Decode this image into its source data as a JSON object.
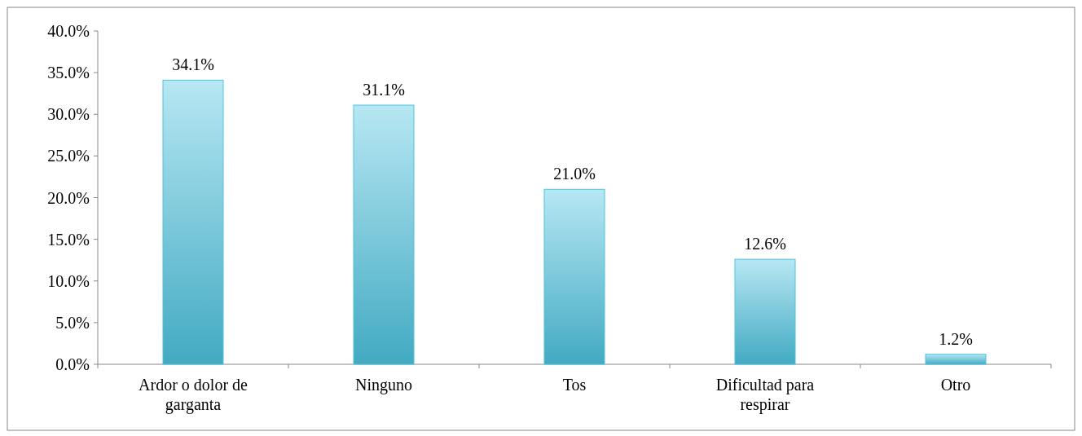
{
  "chart_data": {
    "type": "bar",
    "categories": [
      "Ardor o dolor de garganta",
      "Ninguno",
      "Tos",
      "Dificultad para respirar",
      "Otro"
    ],
    "values": [
      34.1,
      31.1,
      21.0,
      12.6,
      1.2
    ],
    "value_labels": [
      "34.1%",
      "31.1%",
      "21.0%",
      "12.6%",
      "1.2%"
    ],
    "color": "#4cc4e0",
    "ylim": [
      0,
      40
    ],
    "yticks": [
      {
        "value": 0,
        "label": "0.0%"
      },
      {
        "value": 5,
        "label": "5.0%"
      },
      {
        "value": 10,
        "label": "10.0%"
      },
      {
        "value": 15,
        "label": "15.0%"
      },
      {
        "value": 20,
        "label": "20.0%"
      },
      {
        "value": 25,
        "label": "25.0%"
      },
      {
        "value": 30,
        "label": "30.0%"
      },
      {
        "value": 35,
        "label": "35.0%"
      },
      {
        "value": 40,
        "label": "40.0%"
      }
    ],
    "grid": false
  }
}
